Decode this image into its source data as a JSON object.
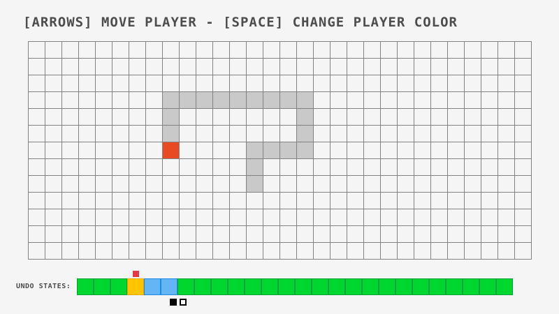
{
  "title": "[ARROWS] MOVE PLAYER - [SPACE] CHANGE PLAYER COLOR",
  "grid": {
    "cols": 30,
    "rows": 13,
    "cell_size": 24,
    "trail_cells": [
      [
        8,
        5
      ],
      [
        8,
        4
      ],
      [
        8,
        3
      ],
      [
        9,
        3
      ],
      [
        10,
        3
      ],
      [
        11,
        3
      ],
      [
        12,
        3
      ],
      [
        13,
        3
      ],
      [
        14,
        3
      ],
      [
        15,
        3
      ],
      [
        16,
        3
      ],
      [
        16,
        4
      ],
      [
        16,
        5
      ],
      [
        16,
        6
      ],
      [
        15,
        6
      ],
      [
        14,
        6
      ],
      [
        13,
        6
      ],
      [
        13,
        7
      ],
      [
        13,
        8
      ]
    ],
    "player": {
      "col": 8,
      "row": 6
    }
  },
  "undo_bar": {
    "label": "UNDO STATES:",
    "cells": [
      "green",
      "green",
      "green",
      "orange",
      "blue",
      "blue",
      "green",
      "green",
      "green",
      "green",
      "green",
      "green",
      "green",
      "green",
      "green",
      "green",
      "green",
      "green",
      "green",
      "green",
      "green",
      "green",
      "green",
      "green",
      "green",
      "green"
    ],
    "marker_cell_index": 3,
    "cursor_gap_index": 6
  },
  "colors": {
    "background": "#f5f5f5",
    "grid_line": "#828282",
    "trail": "#c9c9c9",
    "player": "#e84a23",
    "marker": "#e23945",
    "text": "#4d4d4d",
    "green_fill": "#00d72e",
    "green_border": "#0aa23a",
    "orange_fill": "#ffc400",
    "orange_border": "#efa400",
    "blue_fill": "#64b5f6",
    "blue_border": "#1e88e5",
    "cursor_black": "#000000",
    "cursor_white": "#ffffff"
  }
}
